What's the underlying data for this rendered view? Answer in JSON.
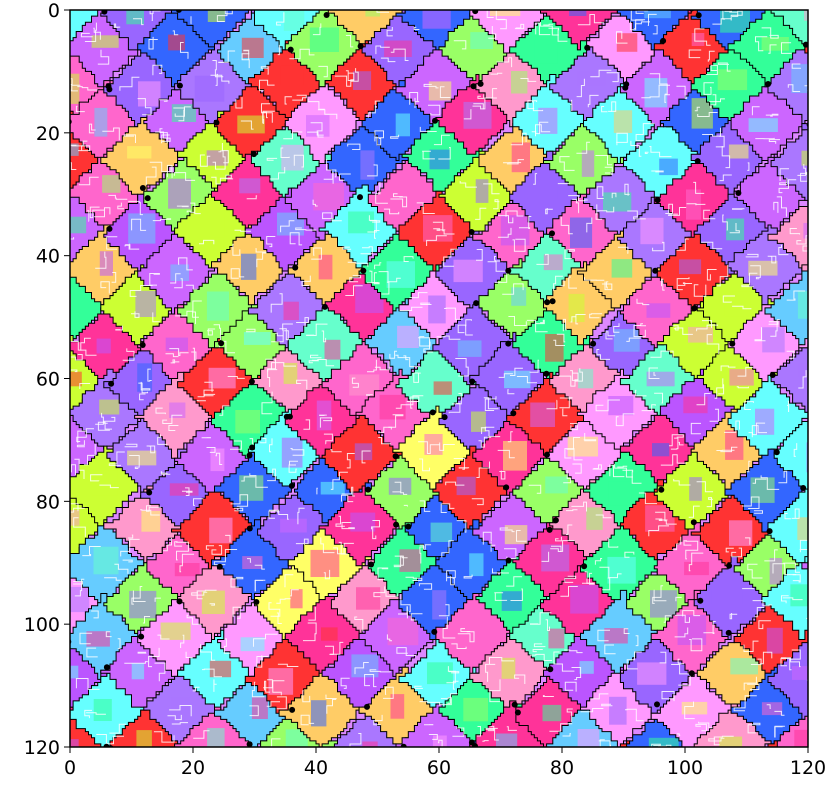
{
  "chart_data": {
    "type": "heatmap",
    "title": "",
    "xlabel": "",
    "ylabel": "",
    "xlim": [
      0,
      120
    ],
    "ylim": [
      120,
      0
    ],
    "y_axis_inverted": true,
    "grid": false,
    "legend": "none",
    "x_ticks": [
      {
        "value": 0,
        "label": "0"
      },
      {
        "value": 20,
        "label": "20"
      },
      {
        "value": 40,
        "label": "40"
      },
      {
        "value": 60,
        "label": "60"
      },
      {
        "value": 80,
        "label": "80"
      },
      {
        "value": 100,
        "label": "100"
      },
      {
        "value": 120,
        "label": "120"
      }
    ],
    "y_ticks": [
      {
        "value": 0,
        "label": "0"
      },
      {
        "value": 20,
        "label": "20"
      },
      {
        "value": 40,
        "label": "40"
      },
      {
        "value": 60,
        "label": "60"
      },
      {
        "value": 80,
        "label": "80"
      },
      {
        "value": 100,
        "label": "100"
      },
      {
        "value": 120,
        "label": "120"
      }
    ],
    "grain_tiling": {
      "lattice_step": 12,
      "lattice_dx": [
        6,
        6
      ],
      "lattice_dy": [
        6,
        -6
      ],
      "grain_outline_color": "#000000",
      "sub_boundary_color": "#ffffff",
      "triple_point_color": "#000000"
    },
    "palette": [
      "#ff66cc",
      "#cc66ff",
      "#9966ff",
      "#66ffcc",
      "#66ccff",
      "#ccff33",
      "#ff3399",
      "#aa77ff",
      "#ff99cc",
      "#33ff99",
      "#3366ff",
      "#ffcc66",
      "#ff3333",
      "#99ff66",
      "#66ffff",
      "#ffff66",
      "#ff99ff",
      "#bb55ff"
    ]
  }
}
